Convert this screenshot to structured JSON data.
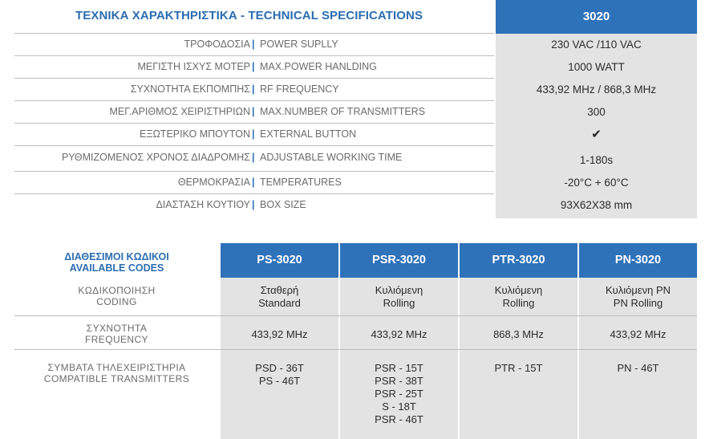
{
  "specs": {
    "title": "ΤΕΧΝΙΚΑ ΧΑΡΑΚΤΗΡΙΣΤΙΚΑ - TECHNICAL SPECIFICATIONS",
    "model": "3020",
    "separator": "|",
    "rows": [
      {
        "gr": "ΤΡΟΦΟΔΟΣΙΑ",
        "en": "POWER SUPLLY",
        "value": "230 VAC /110 VAC"
      },
      {
        "gr": "ΜΕΓΙΣΤΗ ΙΣΧΥΣ ΜΟΤΕΡ",
        "en": "MAX.POWER HANLDING",
        "value": "1000 WATT"
      },
      {
        "gr": "ΣΥΧΝΟΤΗΤΑ ΕΚΠΟΜΠΗΣ",
        "en": "RF FREQUENCY",
        "value": "433,92 MHz / 868,3 MHz"
      },
      {
        "gr": "ΜΕΓ.ΑΡΙΘΜΟΣ ΧΕΙΡΙΣΤΗΡΙΩΝ",
        "en": "MAX.NUMBER OF TRANSMITTERS",
        "value": "300"
      },
      {
        "gr": "ΕΞΩΤΕΡΙΚΟ ΜΠΟΥΤΟΝ",
        "en": "EXTERNAL BUTTON",
        "value": "✔"
      },
      {
        "gr": "ΡΥΘΜΙΖΟΜΕΝΟΣ ΧΡΟΝΟΣ ΔΙΑΔΡΟΜΗΣ",
        "en": "ADJUSTABLE WORKING TIME",
        "value": "1-180s"
      },
      {
        "gr": "ΘΕΡΜΟΚΡΑΣΙΑ",
        "en": "TEMPERATURES",
        "value": "-20°C + 60°C"
      },
      {
        "gr": "ΔΙΑΣΤΑΣΗ ΚΟΥΤΙΟΥ",
        "en": "BOX SIZE",
        "value": "93X62X38 mm"
      }
    ]
  },
  "codes": {
    "title_gr": "ΔΙΑΘΕΣΙΜΟΙ ΚΩΔΙΚΟΙ",
    "title_en": "AVAILABLE CODES",
    "columns": [
      "PS-3020",
      "PSR-3020",
      "PTR-3020",
      "PN-3020"
    ],
    "coding": {
      "gr": "ΚΩΔΙΚΟΠΟΙΗΣΗ",
      "en": "CODING",
      "values": [
        {
          "gr": "Σταθερή",
          "en": "Standard"
        },
        {
          "gr": "Κυλιόμενη",
          "en": "Rolling"
        },
        {
          "gr": "Κυλιόμενη",
          "en": "Rolling"
        },
        {
          "gr": "Κυλιόμενη PN",
          "en": "PN Rolling"
        }
      ]
    },
    "frequency": {
      "gr": "ΣΥΧΝΟΤΗΤΑ",
      "en": "FREQUENCY",
      "values": [
        "433,92 MHz",
        "433,92 MHz",
        "868,3 MHz",
        "433,92 MHz"
      ]
    },
    "transmitters": {
      "gr": "ΣΥΜΒΑΤΑ ΤΗΛΕΧΕΙΡΙΣΤΗΡΙΑ",
      "en": "COMPATIBLE  TRANSMITTERS",
      "values": [
        [
          "PSD - 36T",
          "PS - 46T"
        ],
        [
          "PSR - 15T",
          "PSR - 38T",
          "PSR - 25T",
          "S - 18T",
          "PSR - 46T"
        ],
        [
          "PTR - 15T"
        ],
        [
          "PN - 46T"
        ]
      ]
    }
  }
}
